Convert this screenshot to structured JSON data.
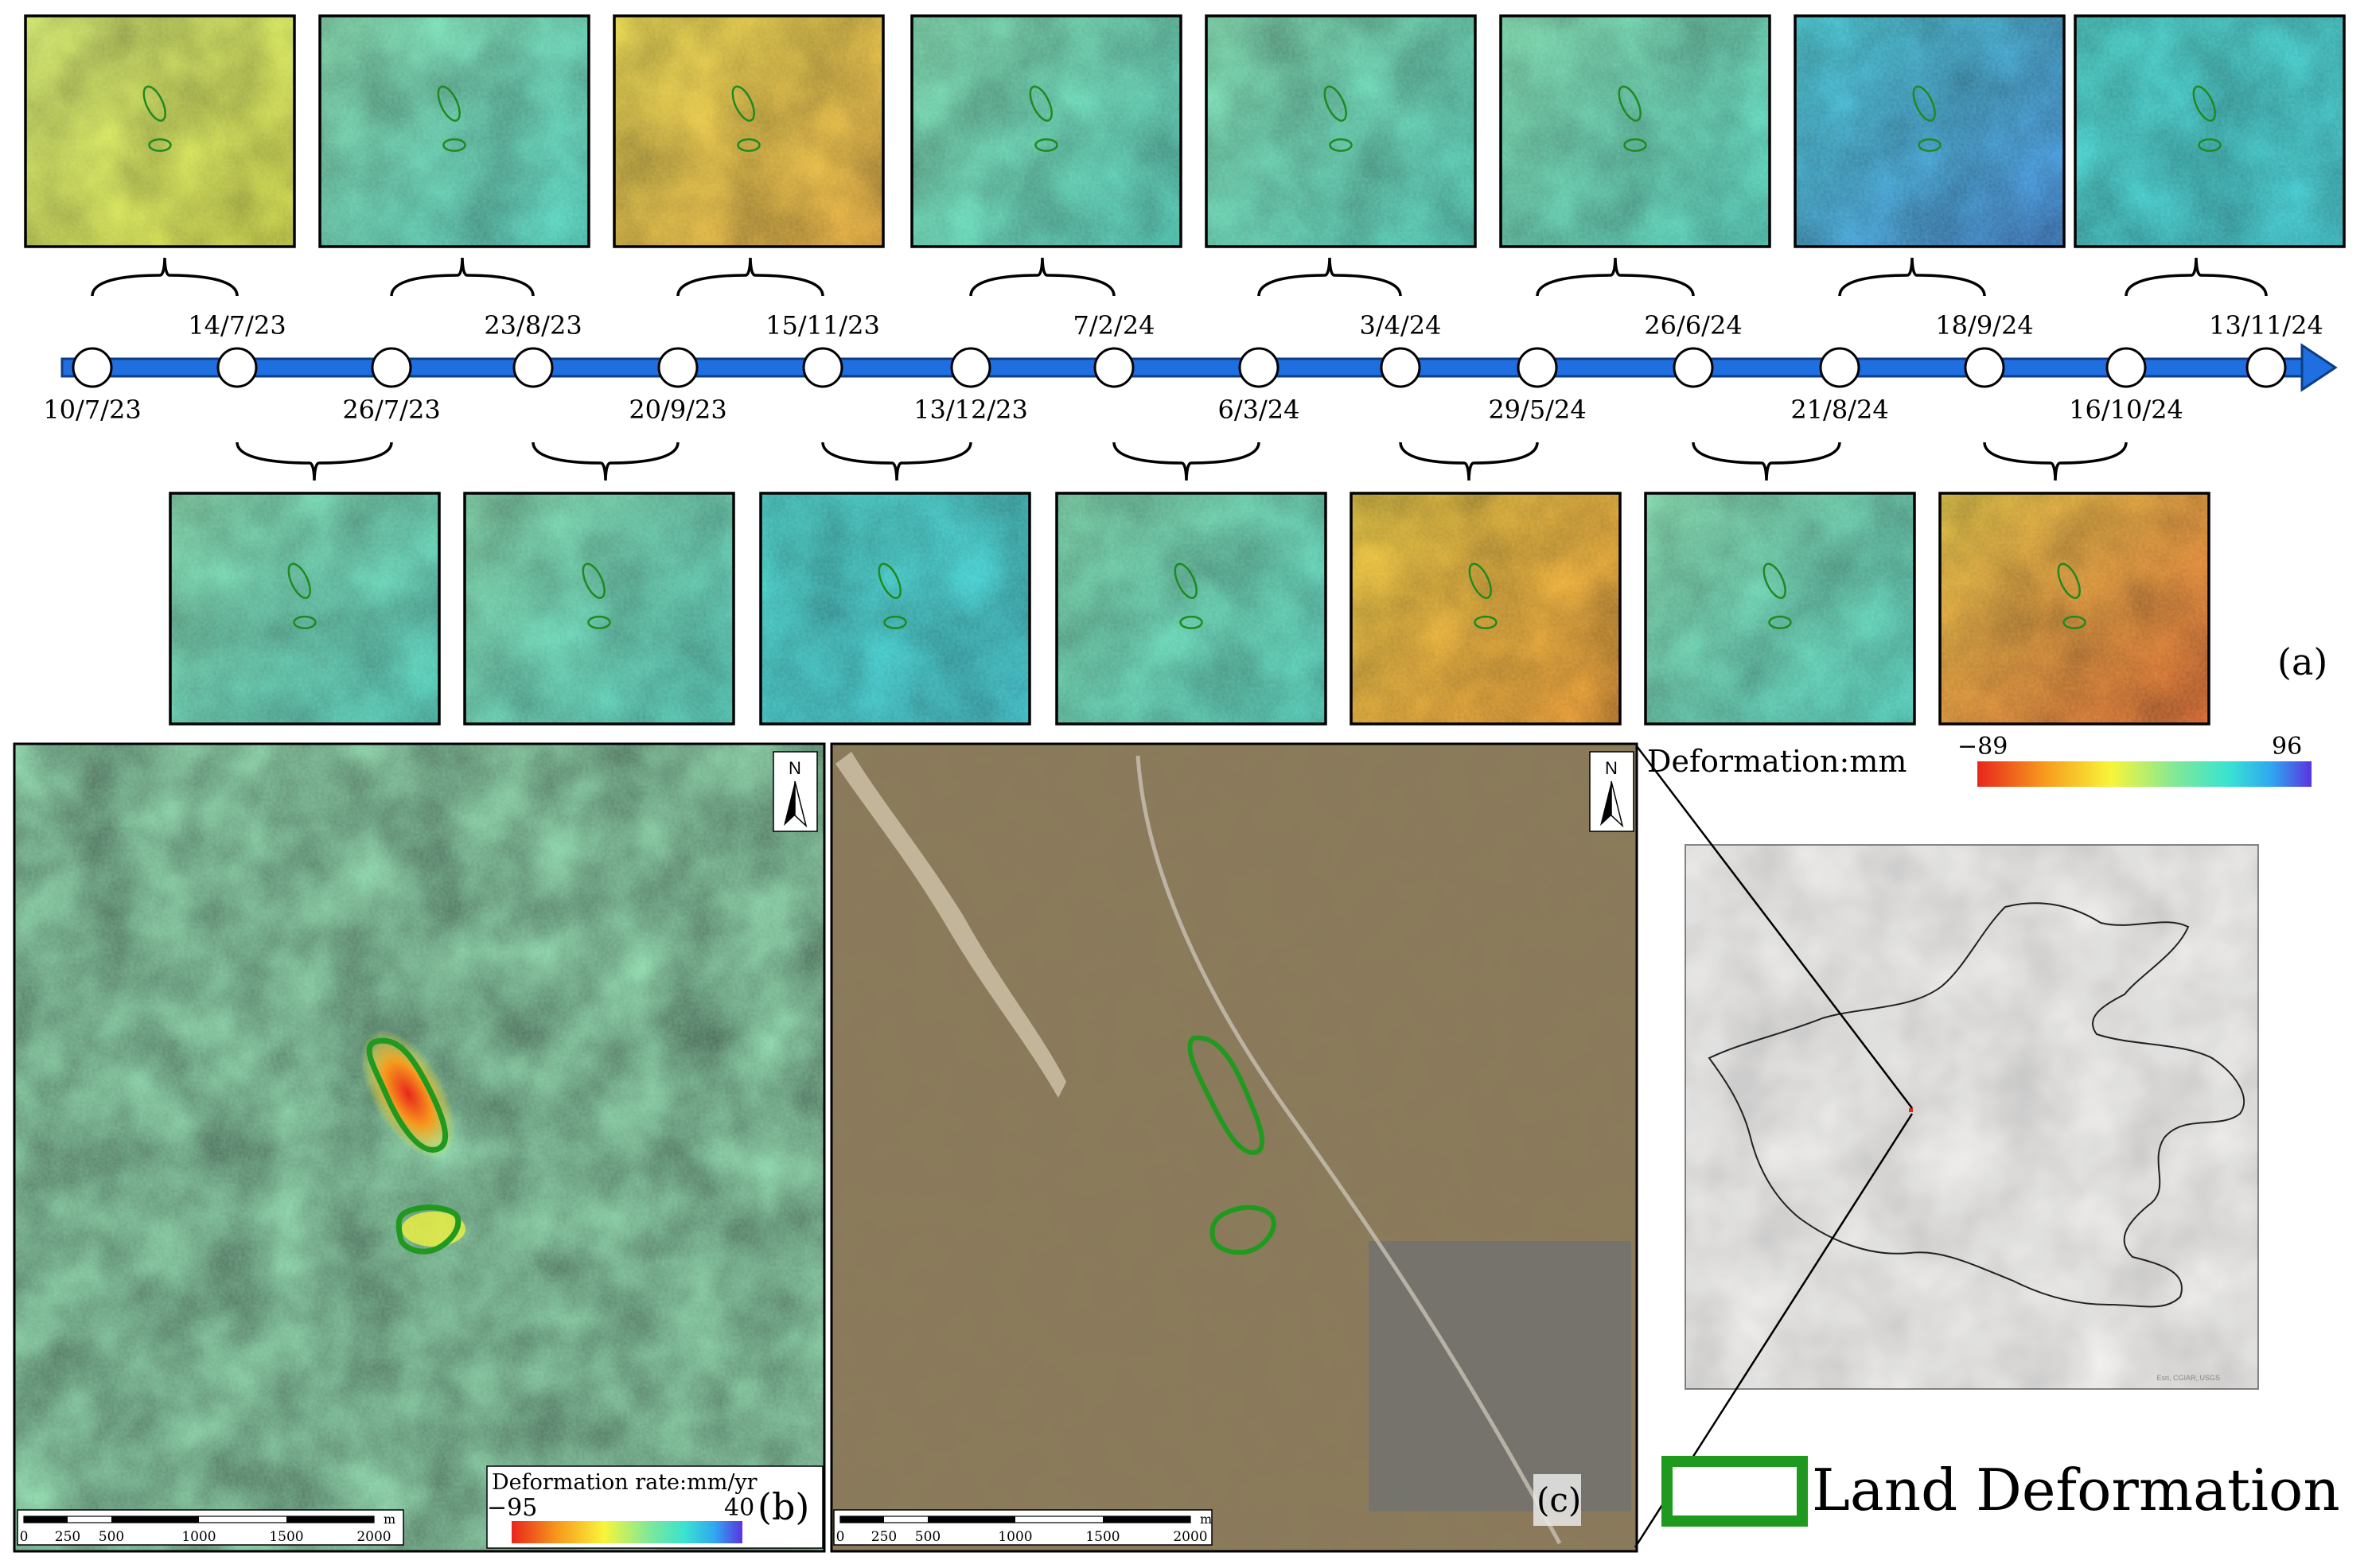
{
  "colors": {
    "timeline_blue": "#1f6fe0",
    "outline_green": "#1f9a1f",
    "deform_low": "#e8261c",
    "deform_mid": "#f8f53a",
    "deform_teal": "#39e3d0",
    "deform_high": "#5a34e0"
  },
  "timeline": {
    "dates": [
      "10/7/23",
      "14/7/23",
      "26/7/23",
      "23/8/23",
      "20/9/23",
      "15/11/23",
      "13/12/23",
      "7/2/24",
      "6/3/24",
      "3/4/24",
      "29/5/24",
      "26/6/24",
      "21/8/24",
      "18/9/24",
      "16/10/24",
      "13/11/24"
    ]
  },
  "thumbnails": {
    "top_row": [
      "yellow-green",
      "cyan-green",
      "yellow-orange",
      "green-cyan",
      "green-cyan",
      "green-cyan",
      "cyan-blue",
      "cyan"
    ],
    "bottom_row": [
      "cyan-green",
      "cyan-green",
      "cyan",
      "green-cyan",
      "orange-yellow",
      "cyan-green",
      "orange-red"
    ]
  },
  "panel_labels": {
    "a": "(a)",
    "b": "(b)",
    "c": "(c)"
  },
  "panel_b": {
    "legend_title": "Deformation rate:mm/yr",
    "legend_min": "−95",
    "legend_max": "40",
    "scale_ticks": [
      "0",
      "250",
      "500",
      "1000",
      "1500",
      "2000"
    ],
    "scale_unit": "m",
    "north_label": "N"
  },
  "panel_c": {
    "scale_ticks": [
      "0",
      "250",
      "500",
      "1000",
      "1500",
      "2000"
    ],
    "scale_unit": "m",
    "north_label": "N"
  },
  "deformation_legend": {
    "title": "Deformation:mm",
    "min": "−89",
    "max": "96"
  },
  "inset_map": {
    "credit": "Esri, CGIAR, USGS"
  },
  "key": {
    "label": "Land Deformation"
  }
}
